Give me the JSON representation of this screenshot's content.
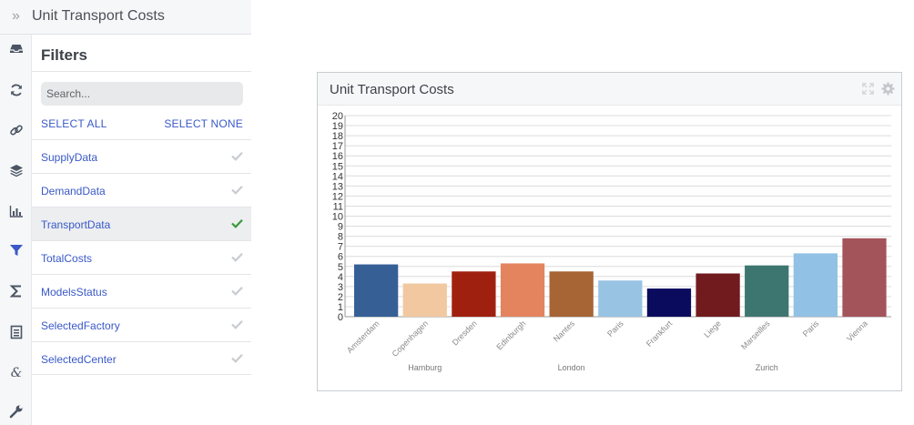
{
  "app": {
    "title": "Unit Transport Costs",
    "collapse_glyph": "»"
  },
  "rail": {
    "icons": [
      "inbox-icon",
      "refresh-icon",
      "link-icon",
      "layers-icon",
      "bar-chart-icon",
      "filter-icon",
      "sigma-icon",
      "document-icon",
      "ampersand-icon",
      "wrench-icon"
    ],
    "active": "filter-icon",
    "colors": {
      "default": "#4b5563",
      "active": "#3a59c7"
    }
  },
  "filters": {
    "title": "Filters",
    "search_placeholder": "Search...",
    "select_all": "SELECT ALL",
    "select_none": "SELECT NONE",
    "items": [
      {
        "label": "SupplyData",
        "checked": false
      },
      {
        "label": "DemandData",
        "checked": false
      },
      {
        "label": "TransportData",
        "checked": true
      },
      {
        "label": "TotalCosts",
        "checked": false
      },
      {
        "label": "ModelsStatus",
        "checked": false
      },
      {
        "label": "SelectedFactory",
        "checked": false
      },
      {
        "label": "SelectedCenter",
        "checked": false
      }
    ],
    "colors": {
      "check_on": "#3a9a3a",
      "check_off": "#c8ccd0"
    }
  },
  "card": {
    "title": "Unit Transport Costs",
    "icons": [
      "expand-icon",
      "gear-icon"
    ]
  },
  "chart_data": {
    "type": "bar",
    "title": "",
    "xlabel": "",
    "ylabel": "",
    "ylim": [
      0,
      20
    ],
    "yticks": [
      0,
      1,
      2,
      3,
      4,
      5,
      6,
      7,
      8,
      9,
      10,
      11,
      12,
      13,
      14,
      15,
      16,
      17,
      18,
      19,
      20
    ],
    "grid": true,
    "groups": [
      {
        "name": "Hamburg",
        "categories": [
          "Amsterdam",
          "Copenhagen",
          "Dresden"
        ]
      },
      {
        "name": "London",
        "categories": [
          "Edinburgh",
          "Nantes",
          "Paris"
        ]
      },
      {
        "name": "Zurich",
        "categories": [
          "Frankfurt",
          "Liege",
          "Marseilles",
          "Paris",
          "Vienna"
        ]
      }
    ],
    "categories": [
      "Amsterdam",
      "Copenhagen",
      "Dresden",
      "Edinburgh",
      "Nantes",
      "Paris",
      "Frankfurt",
      "Liege",
      "Marseilles",
      "Paris",
      "Vienna"
    ],
    "values": [
      5.2,
      3.3,
      4.5,
      5.3,
      4.5,
      3.6,
      2.8,
      4.3,
      5.1,
      6.3,
      7.8
    ],
    "colors": [
      "#365f96",
      "#f2c8a1",
      "#a0200f",
      "#e3845f",
      "#a76535",
      "#98c3e3",
      "#0b0b5e",
      "#711b1f",
      "#3d7670",
      "#91c1e4",
      "#a3545a"
    ]
  }
}
